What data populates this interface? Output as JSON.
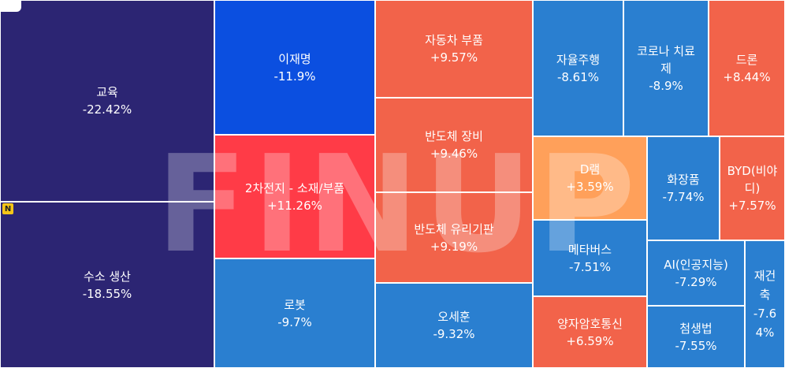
{
  "badge_new": "N",
  "watermark": "FINUP",
  "chart_data": {
    "type": "treemap",
    "colors": {
      "down_strong": "#2c2573",
      "down": "#1f78c8",
      "down_vivid": "#0b4fe0",
      "up": "#f2634a",
      "up_strong": "#ff3b47",
      "up_light": "#ffa05a"
    },
    "items": [
      {
        "name": "교육",
        "change": "-22.42%",
        "value": -22.42,
        "color": "#2c2573"
      },
      {
        "name": "수소 생산",
        "change": "-18.55%",
        "value": -18.55,
        "color": "#2c2573"
      },
      {
        "name": "이재명",
        "change": "-11.9%",
        "value": -11.9,
        "color": "#0b4fe0"
      },
      {
        "name": "2차전지 - 소재/부품",
        "change": "+11.26%",
        "value": 11.26,
        "color": "#ff3b47"
      },
      {
        "name": "로봇",
        "change": "-9.7%",
        "value": -9.7,
        "color": "#2a7fd0"
      },
      {
        "name": "자동차 부품",
        "change": "+9.57%",
        "value": 9.57,
        "color": "#f2634a"
      },
      {
        "name": "반도체 장비",
        "change": "+9.46%",
        "value": 9.46,
        "color": "#f2634a"
      },
      {
        "name": "반도체 유리기판",
        "change": "+9.19%",
        "value": 9.19,
        "color": "#f2634a"
      },
      {
        "name": "오세훈",
        "change": "-9.32%",
        "value": -9.32,
        "color": "#2a7fd0"
      },
      {
        "name": "자율주행",
        "change": "-8.61%",
        "value": -8.61,
        "color": "#2a7fd0"
      },
      {
        "name": "D램",
        "change": "+3.59%",
        "value": 3.59,
        "color": "#ffa05a"
      },
      {
        "name": "메타버스",
        "change": "-7.51%",
        "value": -7.51,
        "color": "#2a7fd0"
      },
      {
        "name": "양자암호통신",
        "change": "+6.59%",
        "value": 6.59,
        "color": "#f2634a"
      },
      {
        "name": "코로나 치료제",
        "change": "-8.9%",
        "value": -8.9,
        "color": "#2a7fd0"
      },
      {
        "name": "드론",
        "change": "+8.44%",
        "value": 8.44,
        "color": "#f2634a"
      },
      {
        "name": "화장품",
        "change": "-7.74%",
        "value": -7.74,
        "color": "#2a7fd0"
      },
      {
        "name": "BYD(비야디)",
        "change": "+7.57%",
        "value": 7.57,
        "color": "#f2634a"
      },
      {
        "name": "AI(인공지능)",
        "change": "-7.29%",
        "value": -7.29,
        "color": "#2a7fd0"
      },
      {
        "name": "첨생법",
        "change": "-7.55%",
        "value": -7.55,
        "color": "#2a7fd0"
      },
      {
        "name": "재건축",
        "change": "-7.64%",
        "value": -7.64,
        "color": "#2a7fd0"
      }
    ]
  }
}
